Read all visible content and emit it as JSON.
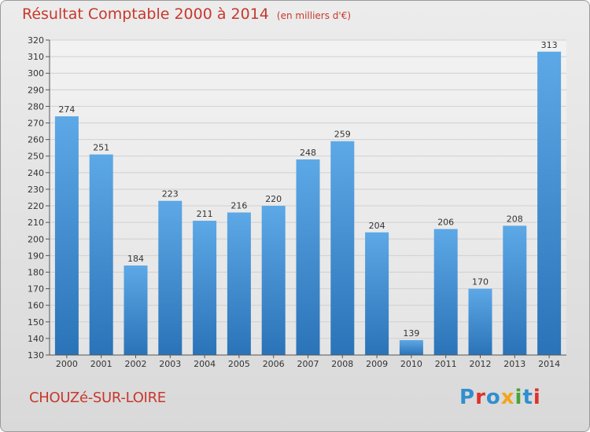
{
  "title": "Résultat Comptable 2000 à 2014",
  "subtitle": "(en milliers d'€)",
  "commune": "CHOUZé-SUR-LOIRE",
  "logo": {
    "text": "Proxiti",
    "colors": [
      "#2f8fd0",
      "#e0302a",
      "#2f8fd0",
      "#f2a51c",
      "#4aa33a",
      "#2f8fd0",
      "#e0302a"
    ]
  },
  "colors": {
    "title": "#c8382d",
    "bar_top": "#5da8e6",
    "bar_bottom": "#2a73b8",
    "grid": "#d0d0d0"
  },
  "chart_data": {
    "type": "bar",
    "title": "Résultat Comptable 2000 à 2014",
    "xlabel": "",
    "ylabel": "",
    "categories": [
      "2000",
      "2001",
      "2002",
      "2003",
      "2004",
      "2005",
      "2006",
      "2007",
      "2008",
      "2009",
      "2010",
      "2011",
      "2012",
      "2013",
      "2014"
    ],
    "values": [
      274,
      251,
      184,
      223,
      211,
      216,
      220,
      248,
      259,
      204,
      139,
      206,
      170,
      208,
      313
    ],
    "ylim": [
      130,
      320
    ],
    "yticks": [
      130,
      140,
      150,
      160,
      170,
      180,
      190,
      200,
      210,
      220,
      230,
      240,
      250,
      260,
      270,
      280,
      290,
      300,
      310,
      320
    ],
    "grid": true
  }
}
